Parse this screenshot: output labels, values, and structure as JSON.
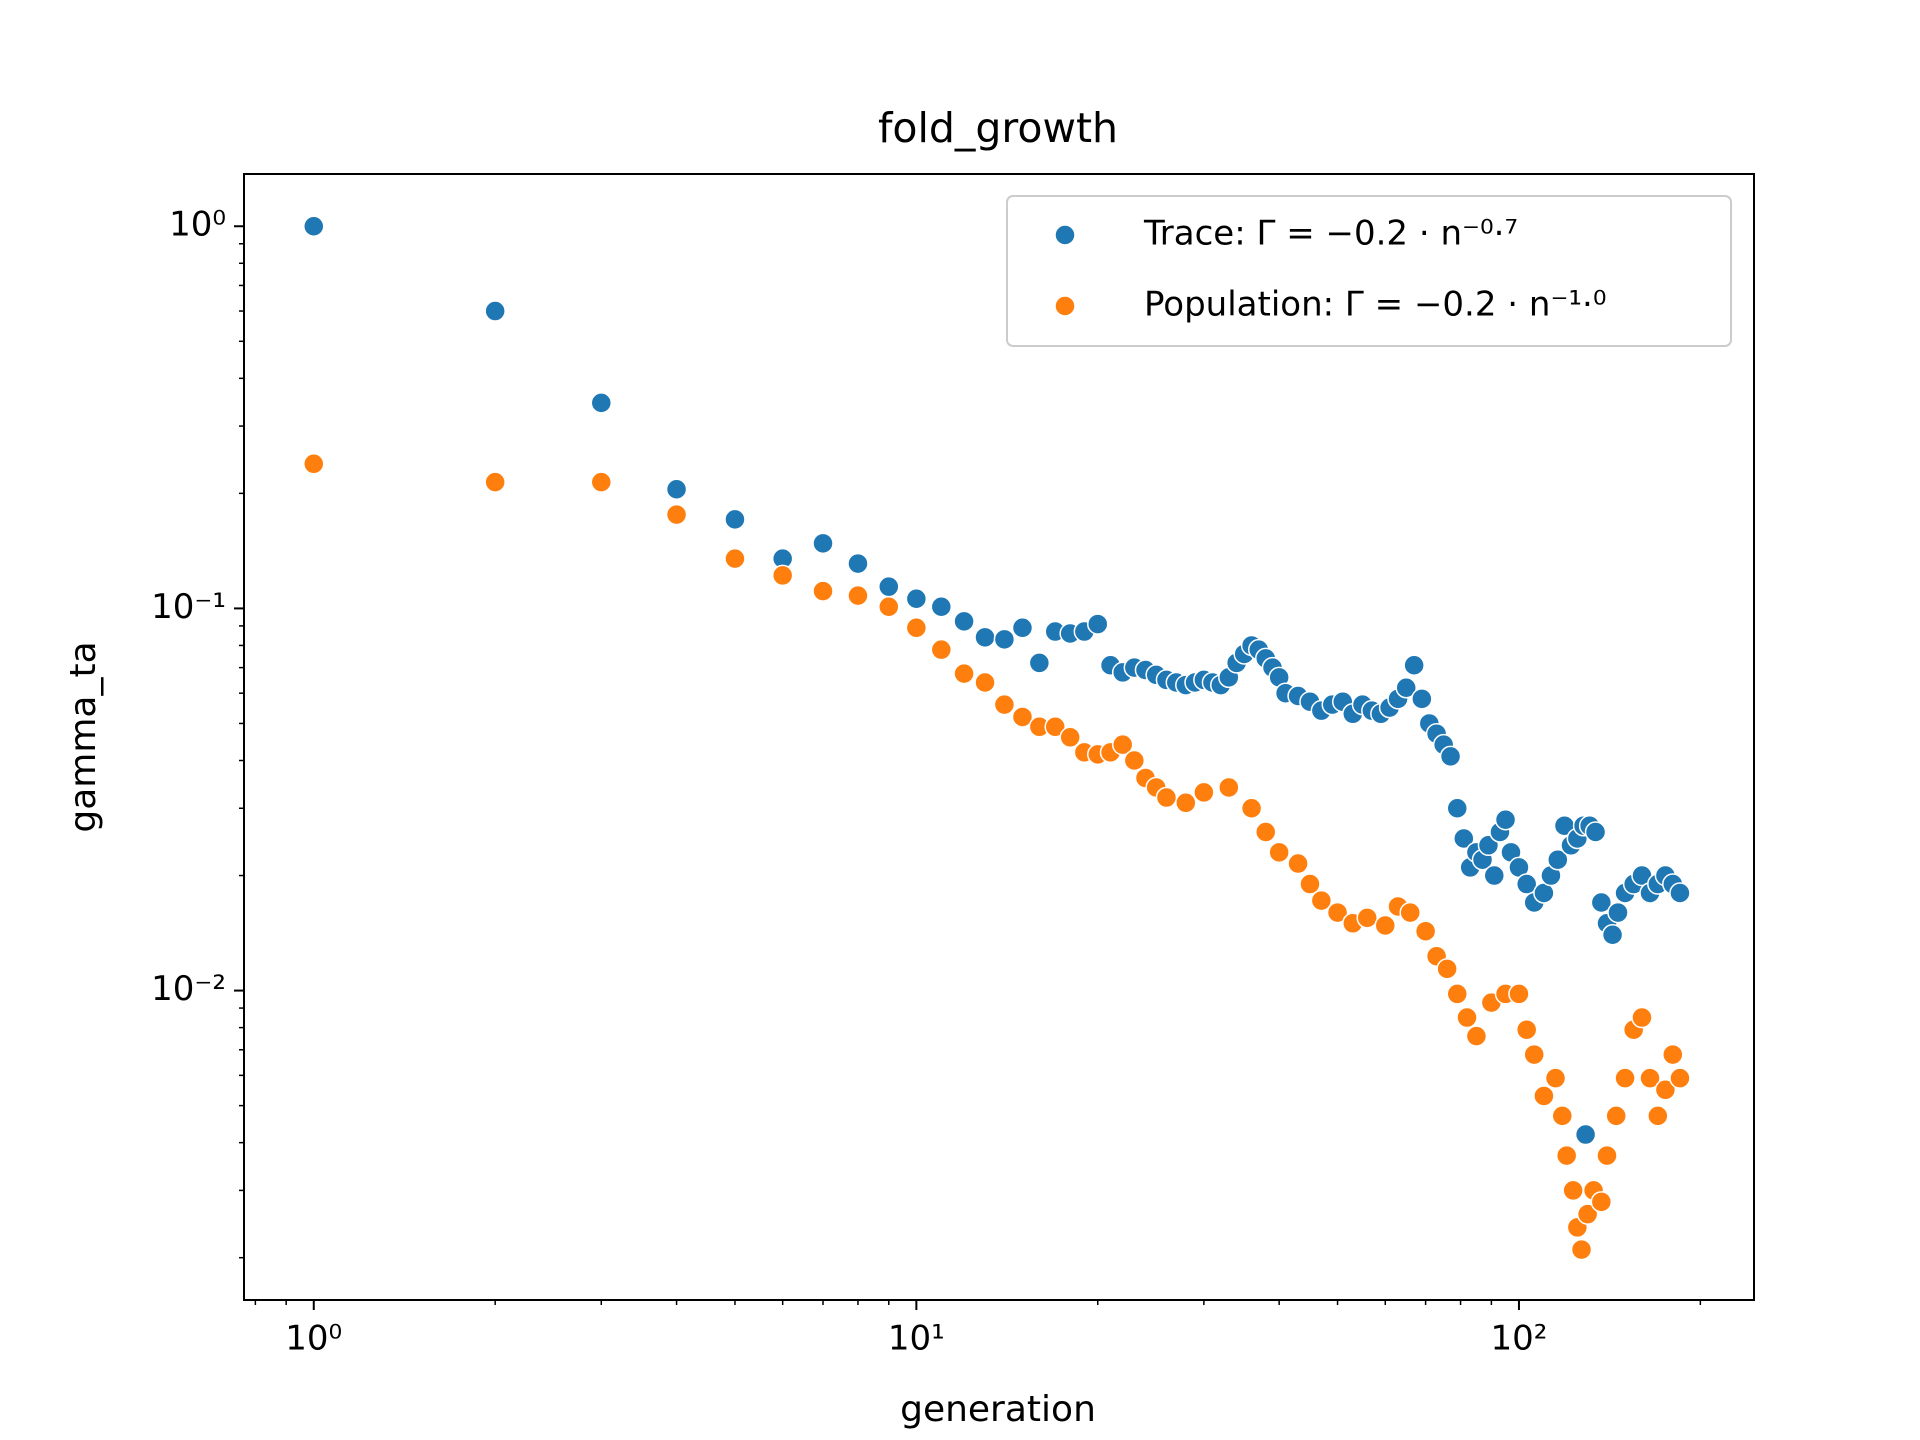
{
  "chart_data": {
    "type": "scatter",
    "title": "fold_growth",
    "x_label": "generation",
    "y_label": "gamma_ta",
    "xscale": "log",
    "yscale": "log",
    "legend": "upper right",
    "xlim": [
      0.766,
      245.5
    ],
    "ylim": [
      0.00155,
      1.37
    ],
    "xticks": [
      {
        "value": 1,
        "label": "10⁰"
      },
      {
        "value": 10,
        "label": "10¹"
      },
      {
        "value": 100,
        "label": "10²"
      }
    ],
    "yticks": [
      {
        "value": 0.01,
        "label": "10⁻²"
      },
      {
        "value": 0.1,
        "label": "10⁻¹"
      },
      {
        "value": 1,
        "label": "10⁰"
      }
    ],
    "xminorticks": [
      0.8,
      0.9,
      2,
      3,
      4,
      5,
      6,
      7,
      8,
      9,
      20,
      30,
      40,
      50,
      60,
      70,
      80,
      90,
      200
    ],
    "yminorticks": [
      0.002,
      0.003,
      0.004,
      0.005,
      0.006,
      0.007,
      0.008,
      0.009,
      0.02,
      0.03,
      0.04,
      0.05,
      0.06,
      0.07,
      0.08,
      0.09,
      0.2,
      0.3,
      0.4,
      0.5,
      0.6,
      0.7,
      0.8,
      0.9
    ],
    "series": [
      {
        "name": "Trace: Γ = −0.2 · n⁻⁰·⁷",
        "color": "#1f77b4",
        "x": [
          1,
          2,
          3,
          4,
          5,
          6,
          7,
          8,
          9,
          10,
          11,
          12,
          13,
          14,
          15,
          16,
          17,
          18,
          19,
          20,
          21,
          22,
          23,
          24,
          25,
          26,
          27,
          28,
          29,
          30,
          31,
          32,
          33,
          34,
          35,
          36,
          37,
          38,
          39,
          40,
          41,
          43,
          45,
          47,
          49,
          51,
          53,
          55,
          57,
          59,
          61,
          63,
          65,
          67,
          69,
          71,
          73,
          75,
          77,
          79,
          81,
          83,
          85,
          87,
          89,
          91,
          93,
          95,
          97,
          100,
          103,
          106,
          110,
          113,
          116,
          119,
          122,
          125,
          128,
          129,
          131,
          134,
          137,
          140,
          143,
          146,
          150,
          155,
          160,
          165,
          170,
          175,
          180,
          185
        ],
        "values": [
          1.0,
          0.6,
          0.345,
          0.205,
          0.171,
          0.135,
          0.148,
          0.131,
          0.114,
          0.106,
          0.101,
          0.0925,
          0.084,
          0.083,
          0.089,
          0.072,
          0.087,
          0.086,
          0.087,
          0.091,
          0.071,
          0.068,
          0.07,
          0.069,
          0.067,
          0.065,
          0.064,
          0.063,
          0.064,
          0.065,
          0.064,
          0.063,
          0.066,
          0.072,
          0.076,
          0.08,
          0.078,
          0.074,
          0.07,
          0.066,
          0.06,
          0.059,
          0.057,
          0.054,
          0.056,
          0.057,
          0.053,
          0.056,
          0.054,
          0.053,
          0.055,
          0.058,
          0.062,
          0.071,
          0.058,
          0.05,
          0.047,
          0.044,
          0.041,
          0.03,
          0.025,
          0.021,
          0.023,
          0.022,
          0.024,
          0.02,
          0.026,
          0.028,
          0.023,
          0.021,
          0.019,
          0.017,
          0.018,
          0.02,
          0.022,
          0.027,
          0.024,
          0.025,
          0.027,
          0.0042,
          0.027,
          0.026,
          0.017,
          0.015,
          0.014,
          0.016,
          0.018,
          0.019,
          0.02,
          0.018,
          0.019,
          0.02,
          0.019,
          0.018
        ]
      },
      {
        "name": "Population: Γ = −0.2 · n⁻¹·⁰",
        "color": "#ff7f0e",
        "x": [
          1,
          2,
          3,
          4,
          5,
          6,
          7,
          8,
          9,
          10,
          11,
          12,
          13,
          14,
          15,
          16,
          17,
          18,
          19,
          20,
          21,
          22,
          23,
          24,
          25,
          26,
          28,
          30,
          33,
          36,
          38,
          40,
          43,
          45,
          47,
          50,
          53,
          56,
          60,
          63,
          66,
          70,
          73,
          76,
          79,
          82,
          85,
          90,
          95,
          100,
          103,
          106,
          110,
          115,
          118,
          120,
          123,
          125,
          127,
          130,
          133,
          137,
          140,
          145,
          150,
          155,
          160,
          165,
          170,
          175,
          180,
          185
        ],
        "values": [
          0.239,
          0.214,
          0.214,
          0.176,
          0.135,
          0.122,
          0.111,
          0.108,
          0.101,
          0.089,
          0.078,
          0.0675,
          0.064,
          0.056,
          0.052,
          0.049,
          0.049,
          0.046,
          0.042,
          0.0415,
          0.042,
          0.044,
          0.04,
          0.036,
          0.034,
          0.032,
          0.031,
          0.033,
          0.034,
          0.03,
          0.026,
          0.023,
          0.0215,
          0.019,
          0.0172,
          0.016,
          0.015,
          0.0155,
          0.0148,
          0.0166,
          0.016,
          0.0143,
          0.0123,
          0.0114,
          0.0098,
          0.0085,
          0.0076,
          0.0093,
          0.0098,
          0.0098,
          0.0079,
          0.0068,
          0.0053,
          0.0059,
          0.0047,
          0.0037,
          0.003,
          0.0024,
          0.0021,
          0.0026,
          0.003,
          0.0028,
          0.0037,
          0.0047,
          0.0059,
          0.0079,
          0.0085,
          0.0059,
          0.0047,
          0.0055,
          0.0068,
          0.0059
        ]
      }
    ]
  }
}
